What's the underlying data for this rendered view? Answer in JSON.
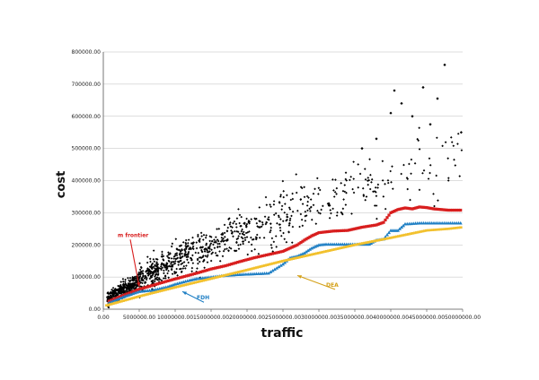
{
  "chart_data": {
    "type": "scatter",
    "title": "",
    "xlabel": "traffic",
    "ylabel": "cost",
    "xlim": [
      0,
      50000000
    ],
    "ylim": [
      0,
      800000
    ],
    "x_ticks": [
      "0.00",
      "5000000.00",
      "10000000.00",
      "15000000.00",
      "20000000.00",
      "25000000.00",
      "30000000.00",
      "35000000.00",
      "40000000.00",
      "45000000.00",
      "50000000.00"
    ],
    "y_ticks": [
      "0.00",
      "100000.00",
      "200000.00",
      "300000.00",
      "400000.00",
      "500000.00",
      "600000.00",
      "700000.00",
      "800000.00"
    ],
    "grid": "horizontal",
    "colors": {
      "observations": "#000000",
      "m_frontier": "#d81e1e",
      "fdh": "#1f7fc4",
      "dea": "#f2c12e",
      "annotation_line": "#e02020"
    },
    "annotations": [
      {
        "text": "m frontier",
        "color": "#d81e1e",
        "label_at": [
          2000000,
          225000
        ],
        "arrow_to": [
          5000000,
          70000
        ]
      },
      {
        "text": "FDH",
        "color": "#1f7fc4",
        "label_at": [
          13000000,
          30000
        ],
        "arrow_to": [
          11000000,
          55000
        ]
      },
      {
        "text": "DEA",
        "color": "#d4a017",
        "label_at": [
          31000000,
          70000
        ],
        "arrow_to": [
          27000000,
          105000
        ]
      }
    ],
    "cloud_bands": [
      {
        "x_range": [
          500000,
          5000000
        ],
        "y_center_start": 30000,
        "y_center_end": 90000,
        "spread": 25000,
        "count": 350
      },
      {
        "x_range": [
          5000000,
          12000000
        ],
        "y_center_start": 90000,
        "y_center_end": 180000,
        "spread": 45000,
        "count": 320
      },
      {
        "x_range": [
          12000000,
          20000000
        ],
        "y_center_start": 160000,
        "y_center_end": 250000,
        "spread": 60000,
        "count": 200
      },
      {
        "x_range": [
          20000000,
          30000000
        ],
        "y_center_start": 230000,
        "y_center_end": 340000,
        "spread": 80000,
        "count": 150
      },
      {
        "x_range": [
          30000000,
          38000000
        ],
        "y_center_start": 320000,
        "y_center_end": 400000,
        "spread": 90000,
        "count": 70
      },
      {
        "x_range": [
          38000000,
          50000000
        ],
        "y_center_start": 380000,
        "y_center_end": 500000,
        "spread": 110000,
        "count": 55
      }
    ],
    "outliers": [
      {
        "x": 47500000,
        "y": 760000
      },
      {
        "x": 44500000,
        "y": 690000
      },
      {
        "x": 40500000,
        "y": 680000
      },
      {
        "x": 46500000,
        "y": 655000
      },
      {
        "x": 41500000,
        "y": 640000
      },
      {
        "x": 49800000,
        "y": 550000
      },
      {
        "x": 45500000,
        "y": 575000
      },
      {
        "x": 43000000,
        "y": 600000
      },
      {
        "x": 40000000,
        "y": 610000
      },
      {
        "x": 38000000,
        "y": 530000
      },
      {
        "x": 36000000,
        "y": 500000
      }
    ],
    "series": [
      {
        "name": "m frontier",
        "marker": "square",
        "points": [
          [
            800000,
            25000
          ],
          [
            3000000,
            45000
          ],
          [
            5000000,
            62000
          ],
          [
            7000000,
            75000
          ],
          [
            9000000,
            88000
          ],
          [
            11000000,
            100000
          ],
          [
            13000000,
            112000
          ],
          [
            15000000,
            125000
          ],
          [
            17000000,
            135000
          ],
          [
            19000000,
            148000
          ],
          [
            21000000,
            160000
          ],
          [
            23000000,
            170000
          ],
          [
            25000000,
            180000
          ],
          [
            26000000,
            190000
          ],
          [
            27000000,
            200000
          ],
          [
            28000000,
            215000
          ],
          [
            29000000,
            228000
          ],
          [
            30000000,
            238000
          ],
          [
            32000000,
            243000
          ],
          [
            34000000,
            245000
          ],
          [
            35000000,
            250000
          ],
          [
            36000000,
            255000
          ],
          [
            38000000,
            262000
          ],
          [
            39000000,
            270000
          ],
          [
            40000000,
            300000
          ],
          [
            41000000,
            310000
          ],
          [
            42000000,
            315000
          ],
          [
            43000000,
            312000
          ],
          [
            44000000,
            318000
          ],
          [
            45000000,
            316000
          ],
          [
            46000000,
            312000
          ],
          [
            47000000,
            310000
          ],
          [
            48000000,
            308000
          ],
          [
            50000000,
            308000
          ]
        ]
      },
      {
        "name": "FDH",
        "marker": "triangle",
        "points": [
          [
            800000,
            20000
          ],
          [
            3000000,
            40000
          ],
          [
            5000000,
            55000
          ],
          [
            7000000,
            60000
          ],
          [
            9000000,
            70000
          ],
          [
            10000000,
            78000
          ],
          [
            12000000,
            90000
          ],
          [
            13000000,
            95000
          ],
          [
            15000000,
            100000
          ],
          [
            17000000,
            105000
          ],
          [
            19000000,
            108000
          ],
          [
            21000000,
            110000
          ],
          [
            23000000,
            112000
          ],
          [
            25000000,
            140000
          ],
          [
            26000000,
            160000
          ],
          [
            27000000,
            165000
          ],
          [
            28000000,
            175000
          ],
          [
            29000000,
            190000
          ],
          [
            30000000,
            200000
          ],
          [
            31000000,
            202000
          ],
          [
            33000000,
            202000
          ],
          [
            35000000,
            202000
          ],
          [
            37000000,
            202000
          ],
          [
            38000000,
            215000
          ],
          [
            39000000,
            218000
          ],
          [
            40000000,
            245000
          ],
          [
            41000000,
            245000
          ],
          [
            42000000,
            265000
          ],
          [
            44000000,
            268000
          ],
          [
            46000000,
            268000
          ],
          [
            48000000,
            268000
          ],
          [
            50000000,
            268000
          ]
        ]
      },
      {
        "name": "DEA",
        "marker": "dash",
        "points": [
          [
            500000,
            12000
          ],
          [
            5000000,
            40000
          ],
          [
            10000000,
            68000
          ],
          [
            15000000,
            95000
          ],
          [
            20000000,
            122000
          ],
          [
            25000000,
            150000
          ],
          [
            30000000,
            175000
          ],
          [
            35000000,
            200000
          ],
          [
            40000000,
            222000
          ],
          [
            45000000,
            245000
          ],
          [
            48000000,
            250000
          ],
          [
            50000000,
            255000
          ]
        ]
      }
    ]
  }
}
